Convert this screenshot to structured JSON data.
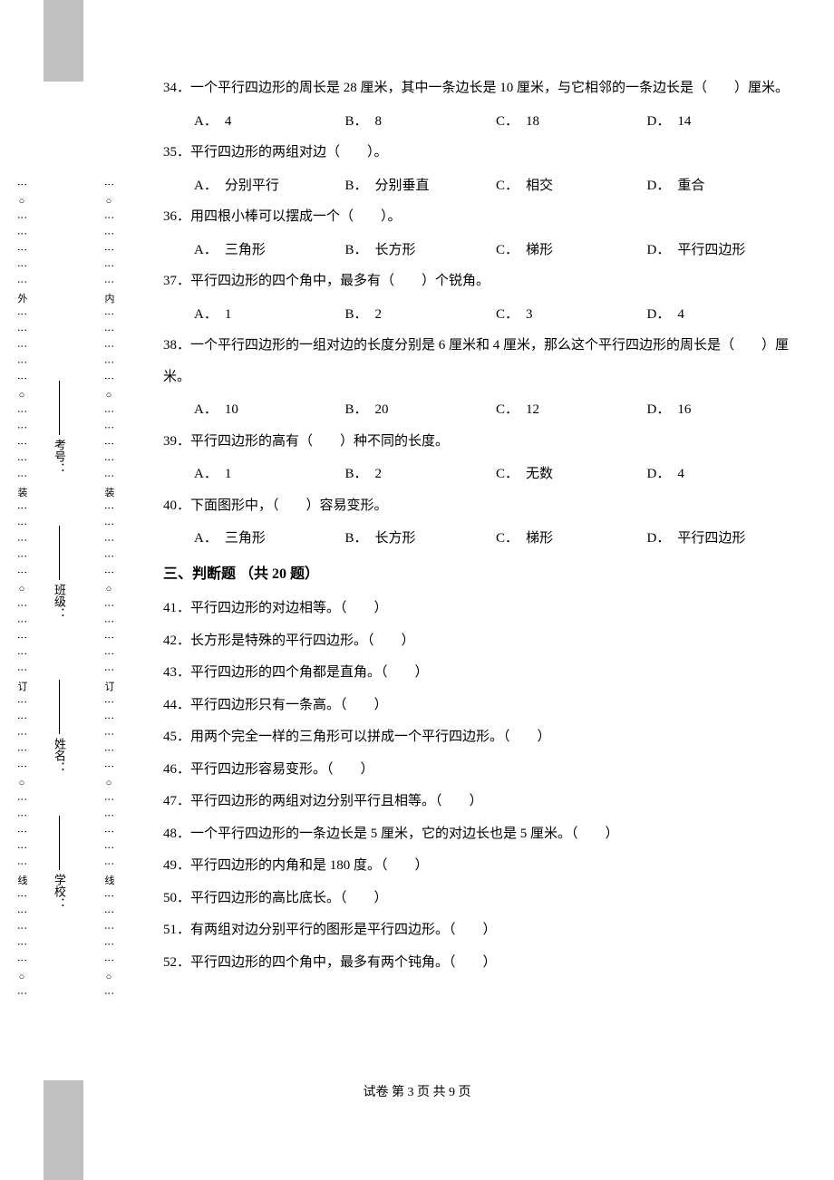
{
  "margin": {
    "outer_pattern": "⋮ ○ ⋮ ⋮ ⋮ ⋮ ⋮ 外 ⋮ ⋮ ⋮ ⋮ ⋮ ○ ⋮ ⋮ ⋮ ⋮ ⋮ 装 ⋮ ⋮ ⋮ ⋮ ⋮ ○ ⋮ ⋮ ⋮ ⋮ ⋮ 订 ⋮ ⋮ ⋮ ⋮ ⋮ ○ ⋮ ⋮ ⋮ ⋮ ⋮ 线 ⋮ ⋮ ⋮ ⋮ ⋮ ○ ⋮",
    "inner_pattern": "⋮ ○ ⋮ ⋮ ⋮ ⋮ ⋮ 内 ⋮ ⋮ ⋮ ⋮ ⋮ ○ ⋮ ⋮ ⋮ ⋮ ⋮ 装 ⋮ ⋮ ⋮ ⋮ ⋮ ○ ⋮ ⋮ ⋮ ⋮ ⋮ 订 ⋮ ⋮ ⋮ ⋮ ⋮ ○ ⋮ ⋮ ⋮ ⋮ ⋮ 线 ⋮ ⋮ ⋮ ⋮ ⋮ ○ ⋮",
    "fields": {
      "school": "学校：",
      "name": "姓名：",
      "class": "班级：",
      "exam_no": "考号："
    }
  },
  "questions": [
    {
      "num": "34",
      "text": "．一个平行四边形的周长是 28 厘米，其中一条边长是 10 厘米，与它相邻的一条边长是（　　）厘米。",
      "opts": [
        {
          "l": "A",
          "t": "4"
        },
        {
          "l": "B",
          "t": "8"
        },
        {
          "l": "C",
          "t": "18"
        },
        {
          "l": "D",
          "t": "14"
        }
      ]
    },
    {
      "num": "35",
      "text": "．平行四边形的两组对边（　　）。",
      "opts": [
        {
          "l": "A",
          "t": "分别平行"
        },
        {
          "l": "B",
          "t": "分别垂直"
        },
        {
          "l": "C",
          "t": "相交"
        },
        {
          "l": "D",
          "t": "重合"
        }
      ]
    },
    {
      "num": "36",
      "text": "．用四根小棒可以摆成一个（　　）。",
      "opts": [
        {
          "l": "A",
          "t": "三角形"
        },
        {
          "l": "B",
          "t": "长方形"
        },
        {
          "l": "C",
          "t": "梯形"
        },
        {
          "l": "D",
          "t": "平行四边形"
        }
      ]
    },
    {
      "num": "37",
      "text": "．平行四边形的四个角中，最多有（　　）个锐角。",
      "opts": [
        {
          "l": "A",
          "t": "1"
        },
        {
          "l": "B",
          "t": "2"
        },
        {
          "l": "C",
          "t": "3"
        },
        {
          "l": "D",
          "t": "4"
        }
      ]
    },
    {
      "num": "38",
      "text": "．一个平行四边形的一组对边的长度分别是 6 厘米和 4 厘米，那么这个平行四边形的周长是（　　）厘米。",
      "opts": [
        {
          "l": "A",
          "t": "10"
        },
        {
          "l": "B",
          "t": "20"
        },
        {
          "l": "C",
          "t": "12"
        },
        {
          "l": "D",
          "t": "16"
        }
      ]
    },
    {
      "num": "39",
      "text": "．平行四边形的高有（　　）种不同的长度。",
      "opts": [
        {
          "l": "A",
          "t": "1"
        },
        {
          "l": "B",
          "t": "2"
        },
        {
          "l": "C",
          "t": "无数"
        },
        {
          "l": "D",
          "t": "4"
        }
      ]
    },
    {
      "num": "40",
      "text": "．下面图形中，（　　）容易变形。",
      "opts": [
        {
          "l": "A",
          "t": "三角形"
        },
        {
          "l": "B",
          "t": "长方形"
        },
        {
          "l": "C",
          "t": "梯形"
        },
        {
          "l": "D",
          "t": "平行四边形"
        }
      ]
    }
  ],
  "section3": {
    "title": "三、判断题 （共 20 题）",
    "items": [
      {
        "num": "41",
        "text": "．平行四边形的对边相等。（　　）"
      },
      {
        "num": "42",
        "text": "．长方形是特殊的平行四边形。（　　）"
      },
      {
        "num": "43",
        "text": "．平行四边形的四个角都是直角。（　　）"
      },
      {
        "num": "44",
        "text": "．平行四边形只有一条高。（　　）"
      },
      {
        "num": "45",
        "text": "．用两个完全一样的三角形可以拼成一个平行四边形。（　　）"
      },
      {
        "num": "46",
        "text": "．平行四边形容易变形。（　　）"
      },
      {
        "num": "47",
        "text": "．平行四边形的两组对边分别平行且相等。（　　）"
      },
      {
        "num": "48",
        "text": "．一个平行四边形的一条边长是 5 厘米，它的对边长也是 5 厘米。（　　）"
      },
      {
        "num": "49",
        "text": "．平行四边形的内角和是 180 度。（　　）"
      },
      {
        "num": "50",
        "text": "．平行四边形的高比底长。（　　）"
      },
      {
        "num": "51",
        "text": "．有两组对边分别平行的图形是平行四边形。（　　）"
      },
      {
        "num": "52",
        "text": "．平行四边形的四个角中，最多有两个钝角。（　　）"
      }
    ]
  },
  "footer": "试卷  第 3 页  共 9 页",
  "colors": {
    "gray": "#c0c0c0",
    "text": "#000000",
    "bg": "#ffffff"
  }
}
